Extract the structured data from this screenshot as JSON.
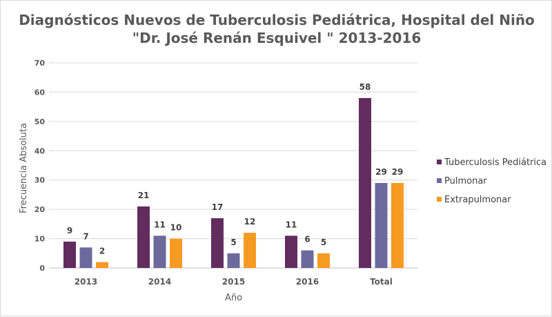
{
  "chart_data": {
    "type": "bar",
    "title_line1": "Diagnósticos Nuevos de Tuberculosis Pediátrica, Hospital del Niño",
    "title_line2": "\"Dr. José Renán Esquivel \" 2013-2016",
    "xlabel": "Año",
    "ylabel": "Frecuencia Absoluta",
    "categories": [
      "2013",
      "2014",
      "2015",
      "2016",
      "Total"
    ],
    "series": [
      {
        "name": "Tuberculosis Pediátrica",
        "color": "#622c5f",
        "values": [
          9,
          21,
          17,
          11,
          58
        ]
      },
      {
        "name": "Pulmonar",
        "color": "#6c6a9c",
        "values": [
          7,
          11,
          5,
          6,
          29
        ]
      },
      {
        "name": "Extrapulmonar",
        "color": "#f79a22",
        "values": [
          2,
          10,
          12,
          5,
          29
        ]
      }
    ],
    "ylim": [
      0,
      70
    ],
    "yticks": [
      0,
      10,
      20,
      30,
      40,
      50,
      60,
      70
    ],
    "grid": true,
    "legend_position": "right",
    "data_labels": true
  }
}
